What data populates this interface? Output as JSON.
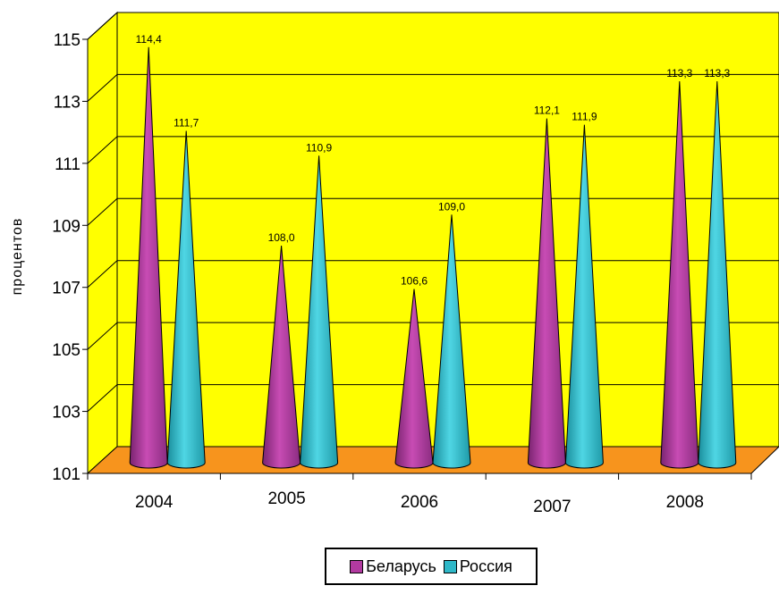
{
  "chart_data": {
    "type": "bar",
    "categories": [
      "2004",
      "2005",
      "2006",
      "2007",
      "2008"
    ],
    "series": [
      {
        "name": "Беларусь",
        "values": [
          114.4,
          108.0,
          106.6,
          112.1,
          113.3
        ],
        "labels": [
          "114,4",
          "108,0",
          "106,6",
          "112,1",
          "113,3"
        ],
        "color": "#b23aa0"
      },
      {
        "name": "Россия",
        "values": [
          111.7,
          110.9,
          109.0,
          111.9,
          113.3
        ],
        "labels": [
          "111,7",
          "110,9",
          "109,0",
          "111,9",
          "113,3"
        ],
        "color": "#2fb8c8"
      }
    ],
    "ylabel": "процентов",
    "ylim": [
      101,
      115
    ],
    "yticks": [
      "101",
      "103",
      "105",
      "107",
      "109",
      "111",
      "113",
      "115"
    ],
    "grid": true,
    "legend_position": "bottom",
    "colors": {
      "wall": "#ffff00",
      "floor": "#f7941d"
    }
  }
}
